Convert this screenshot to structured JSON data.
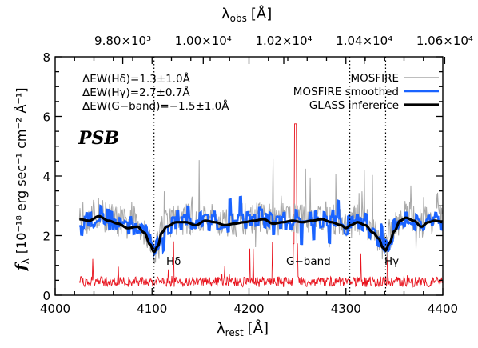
{
  "chart_data": {
    "type": "line",
    "xlabel_bottom": "λ",
    "xlabel_bottom_sub": "rest",
    "xlabel_bottom_unit": "[Å]",
    "xlabel_top": "λ",
    "xlabel_top_sub": "obs",
    "xlabel_top_unit": "[Å]",
    "ylabel": "f",
    "ylabel_sub": "λ",
    "ylabel_unit": "[10⁻¹⁸ erg sec⁻¹ cm⁻² Å⁻¹]",
    "xlim": [
      4000,
      4400
    ],
    "ylim": [
      0,
      8
    ],
    "x_ticks": [
      4000,
      4100,
      4200,
      4300,
      4400
    ],
    "y_ticks": [
      0,
      2,
      4,
      6,
      8
    ],
    "top_ticks": [
      {
        "obs": 9800,
        "label": "9.80×10³"
      },
      {
        "obs": 10000,
        "label": "1.00×10⁴"
      },
      {
        "obs": 10200,
        "label": "1.02×10⁴"
      },
      {
        "obs": 10400,
        "label": "1.04×10⁴"
      },
      {
        "obs": 10600,
        "label": "1.06×10⁴"
      }
    ],
    "redshift_factor": 2.408,
    "sample_label": "PSB",
    "annotations": [
      "ΔEW(Hδ)=1.3±1.0Å",
      "ΔEW(Hγ)=2.7±0.7Å",
      "ΔEW(G−band)=−1.5±1.0Å"
    ],
    "lines": [
      {
        "name": "Hδ",
        "x": 4102
      },
      {
        "name": "G−band",
        "x": 4304
      },
      {
        "name": "Hγ",
        "x": 4341
      }
    ],
    "series": [
      {
        "name": "MOSFIRE",
        "color": "#a8a8a8"
      },
      {
        "name": "MOSFIRE smoothed",
        "color": "#1a63ff"
      },
      {
        "name": "GLASS inference",
        "color": "#000000"
      },
      {
        "name": "",
        "color": "#e8141e"
      }
    ],
    "x_start": 4025,
    "x_end": 4400,
    "model_knots": [
      [
        4025,
        2.55
      ],
      [
        4035,
        2.5
      ],
      [
        4045,
        2.65
      ],
      [
        4055,
        2.5
      ],
      [
        4065,
        2.4
      ],
      [
        4075,
        2.25
      ],
      [
        4085,
        2.3
      ],
      [
        4092,
        2.1
      ],
      [
        4098,
        1.7
      ],
      [
        4102,
        1.45
      ],
      [
        4106,
        1.65
      ],
      [
        4110,
        2.1
      ],
      [
        4115,
        2.3
      ],
      [
        4125,
        2.45
      ],
      [
        4135,
        2.45
      ],
      [
        4145,
        2.35
      ],
      [
        4155,
        2.5
      ],
      [
        4165,
        2.45
      ],
      [
        4175,
        2.35
      ],
      [
        4185,
        2.4
      ],
      [
        4195,
        2.45
      ],
      [
        4205,
        2.5
      ],
      [
        4215,
        2.55
      ],
      [
        4225,
        2.4
      ],
      [
        4235,
        2.45
      ],
      [
        4245,
        2.5
      ],
      [
        4255,
        2.45
      ],
      [
        4265,
        2.5
      ],
      [
        4275,
        2.55
      ],
      [
        4285,
        2.45
      ],
      [
        4295,
        2.35
      ],
      [
        4300,
        2.25
      ],
      [
        4305,
        2.35
      ],
      [
        4312,
        2.45
      ],
      [
        4320,
        2.35
      ],
      [
        4328,
        2.1
      ],
      [
        4334,
        1.9
      ],
      [
        4338,
        1.6
      ],
      [
        4341,
        1.5
      ],
      [
        4345,
        1.75
      ],
      [
        4350,
        2.15
      ],
      [
        4356,
        2.5
      ],
      [
        4362,
        2.6
      ],
      [
        4370,
        2.5
      ],
      [
        4378,
        2.3
      ],
      [
        4385,
        2.45
      ],
      [
        4392,
        2.5
      ],
      [
        4400,
        2.45
      ]
    ],
    "smooth_noise": 0.35,
    "raw_noise": 0.9,
    "red_spike": {
      "x": 4248,
      "y": 5.75
    },
    "red_baseline": 0.45
  }
}
